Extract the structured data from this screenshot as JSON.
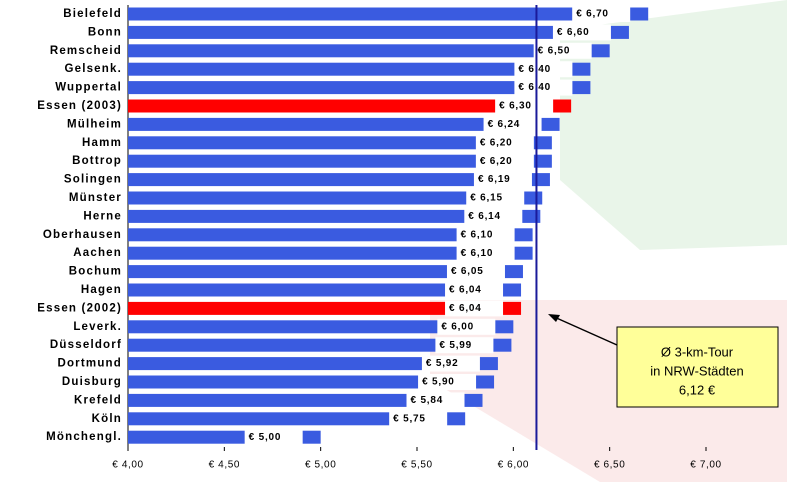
{
  "chart_data": {
    "type": "hbar",
    "categories": [
      "Bielefeld",
      "Bonn",
      "Remscheid",
      "Gelsenk.",
      "Wuppertal",
      "Essen (2003)",
      "Mülheim",
      "Hamm",
      "Bottrop",
      "Solingen",
      "Münster",
      "Herne",
      "Oberhausen",
      "Aachen",
      "Bochum",
      "Hagen",
      "Essen (2002)",
      "Leverk.",
      "Düsseldorf",
      "Dortmund",
      "Duisburg",
      "Krefeld",
      "Köln",
      "Mönchengl."
    ],
    "values": [
      6.7,
      6.6,
      6.5,
      6.4,
      6.4,
      6.3,
      6.24,
      6.2,
      6.2,
      6.19,
      6.15,
      6.14,
      6.1,
      6.1,
      6.05,
      6.04,
      6.04,
      6.0,
      5.99,
      5.92,
      5.9,
      5.84,
      5.75,
      5.0
    ],
    "value_labels": [
      "€ 6,70",
      "€ 6,60",
      "€ 6,50",
      "€ 6,40",
      "€ 6,40",
      "€ 6,30",
      "€ 6,24",
      "€ 6,20",
      "€ 6,20",
      "€ 6,19",
      "€ 6,15",
      "€ 6,14",
      "€ 6,10",
      "€ 6,10",
      "€ 6,05",
      "€ 6,04",
      "€ 6,04",
      "€ 6,00",
      "€ 5,99",
      "€ 5,92",
      "€ 5,90",
      "€ 5,84",
      "€ 5,75",
      "€ 5,00"
    ],
    "colors": [
      "#3a5be0",
      "#3a5be0",
      "#3a5be0",
      "#3a5be0",
      "#3a5be0",
      "#ff0000",
      "#3a5be0",
      "#3a5be0",
      "#3a5be0",
      "#3a5be0",
      "#3a5be0",
      "#3a5be0",
      "#3a5be0",
      "#3a5be0",
      "#3a5be0",
      "#3a5be0",
      "#ff0000",
      "#3a5be0",
      "#3a5be0",
      "#3a5be0",
      "#3a5be0",
      "#3a5be0",
      "#3a5be0",
      "#3a5be0"
    ],
    "xlim": [
      4.0,
      7.0
    ],
    "xticks": [
      {
        "value": 4.0,
        "label": "€ 4,00"
      },
      {
        "value": 4.5,
        "label": "€ 4,50"
      },
      {
        "value": 5.0,
        "label": "€ 5,00"
      },
      {
        "value": 5.5,
        "label": "€ 5,50"
      },
      {
        "value": 6.0,
        "label": "€ 6,00"
      },
      {
        "value": 6.5,
        "label": "€ 6,50"
      },
      {
        "value": 7.0,
        "label": "€ 7,00"
      }
    ],
    "reference_line": {
      "value": 6.12,
      "color": "#1a1a9a",
      "label_lines": [
        "Ø 3-km-Tour",
        "in NRW-Städten",
        "6,12 €"
      ]
    }
  }
}
